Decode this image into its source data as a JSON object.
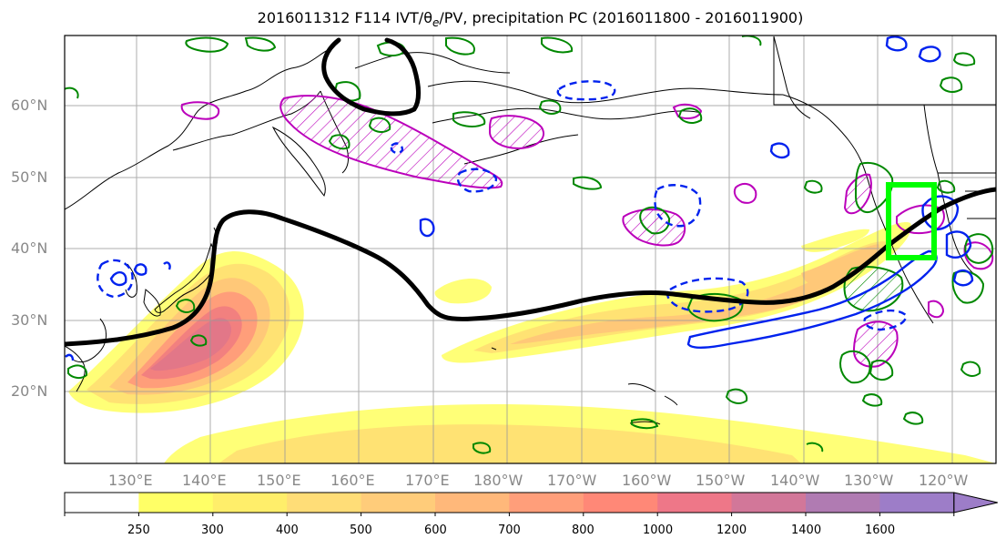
{
  "title": {
    "prefix": "2016011312 F114 IVT/θ",
    "sub": "e",
    "suffix": "/PV, precipitation PC (2016011800 - 2016011900)"
  },
  "map": {
    "lat_labels": [
      "60°N",
      "50°N",
      "40°N",
      "30°N",
      "20°N"
    ],
    "lon_labels": [
      "130°E",
      "140°E",
      "150°E",
      "160°E",
      "170°E",
      "180°W",
      "170°W",
      "160°W",
      "150°W",
      "140°W",
      "130°W",
      "120°W"
    ],
    "region": "North Pacific",
    "lon_range": [
      "120°E",
      "110°W"
    ],
    "lat_range": [
      "10°N",
      "70°N"
    ],
    "grid": true,
    "layers": {
      "ivt_shading": "filled contours (yellow–red–purple)",
      "theta_e_contour": "thick black line",
      "pv_contours": "blue (dashed and solid)",
      "precip_pc_contours": "green and magenta (hatched)",
      "target_box": "bright green rectangle"
    },
    "colors": {
      "box": "#00ff00",
      "theta_e": "#000000",
      "pv_neg": "#0022ee",
      "pv_pos": "#0022ee",
      "precip_green": "#008800",
      "precip_magenta": "#bb00bb"
    }
  },
  "colorbar": {
    "ticks": [
      "250",
      "300",
      "400",
      "500",
      "600",
      "700",
      "800",
      "1000",
      "1200",
      "1400",
      "1600"
    ],
    "colors": [
      "#ffffff",
      "#ffff66",
      "#ffee6a",
      "#ffdd77",
      "#ffcc7a",
      "#ffb87a",
      "#ff9e7a",
      "#ff8877",
      "#ee7788",
      "#d27799",
      "#b07bb2",
      "#9d7dc8"
    ]
  }
}
